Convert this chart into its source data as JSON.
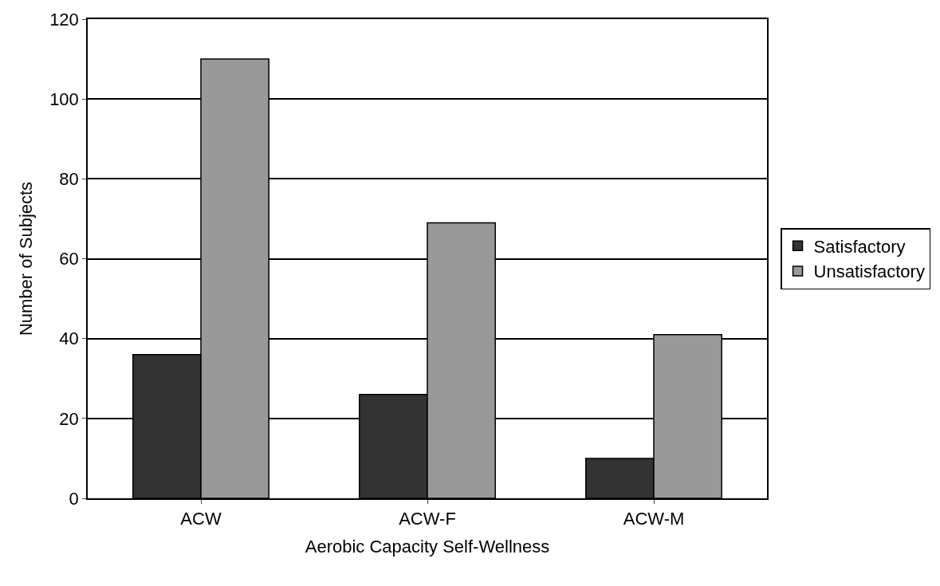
{
  "chart_data": {
    "type": "bar",
    "xlabel": "Aerobic Capacity Self-Wellness",
    "ylabel": "Number of Subjects",
    "categories": [
      "ACW",
      "ACW-F",
      "ACW-M"
    ],
    "series": [
      {
        "name": "Satisfactory",
        "color": "#333333",
        "values": [
          36,
          26,
          10
        ]
      },
      {
        "name": "Unsatisfactory",
        "color": "#999999",
        "values": [
          110,
          69,
          41
        ]
      }
    ],
    "ylim": [
      0,
      120
    ],
    "yticks": [
      0,
      20,
      40,
      60,
      80,
      100,
      120
    ],
    "grid": "y",
    "legend": "right"
  }
}
